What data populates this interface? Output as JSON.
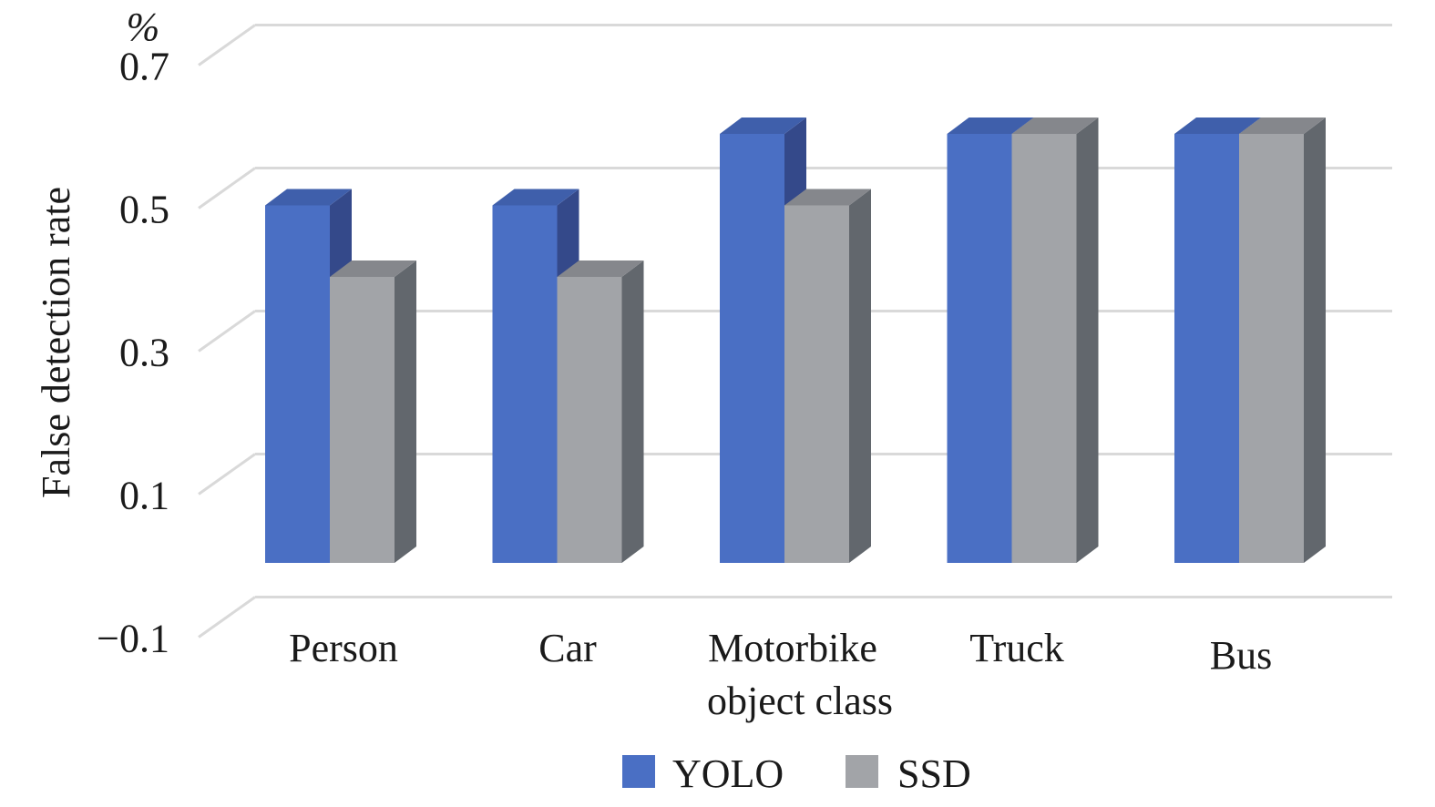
{
  "chart_data": {
    "type": "bar",
    "unit_label": "%",
    "ylabel": "False detection rate",
    "xlabel": "object class",
    "ylim": [
      -0.1,
      0.7
    ],
    "yticks": [
      "0.7",
      "0.5",
      "0.3",
      "0.1",
      "−0.1"
    ],
    "ytick_values": [
      0.7,
      0.5,
      0.3,
      0.1,
      -0.1
    ],
    "categories": [
      "Person",
      "Car",
      "Motorbike",
      "Truck",
      "Bus"
    ],
    "series": [
      {
        "name": "YOLO",
        "values": [
          0.5,
          0.5,
          0.6,
          0.6,
          0.6
        ]
      },
      {
        "name": "SSD",
        "values": [
          0.4,
          0.4,
          0.5,
          0.6,
          0.6
        ]
      }
    ],
    "legend_position": "bottom",
    "grid": true,
    "three_d": true
  },
  "colors": {
    "yolo_front": "#4a6fc4",
    "yolo_top": "#3f5fab",
    "yolo_side": "#34498a",
    "ssd_front": "#a2a4a8",
    "ssd_top": "#85878c",
    "ssd_side": "#62676d",
    "grid": "#d9d9d9"
  }
}
